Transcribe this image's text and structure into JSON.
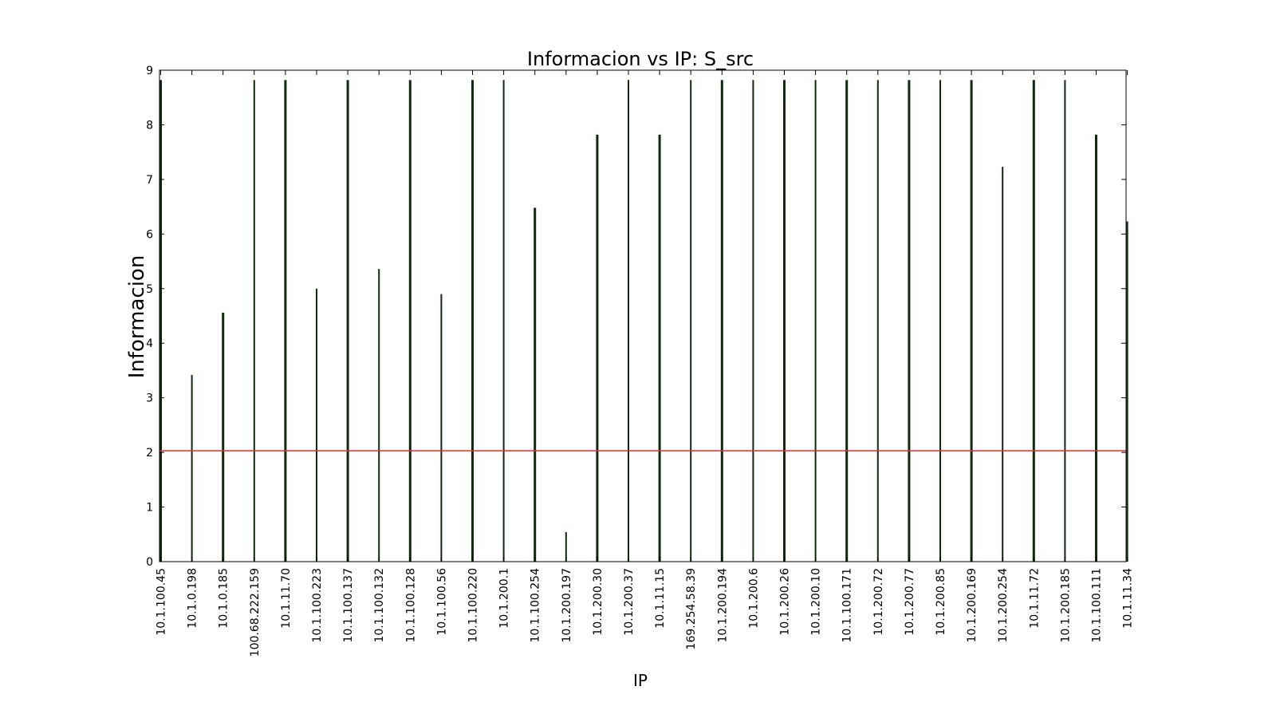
{
  "chart_data": {
    "type": "bar",
    "title": "Informacion vs IP: S_src",
    "xlabel": "IP",
    "ylabel": "Informacion",
    "ylim": [
      0,
      9
    ],
    "yticks": [
      "0",
      "1",
      "2",
      "3",
      "4",
      "5",
      "6",
      "7",
      "8",
      "9"
    ],
    "grid": false,
    "bar_color": "#0f2a0f",
    "threshold": {
      "value": 2.03,
      "color": "#e03030"
    },
    "categories": [
      "10.1.100.45",
      "10.1.0.198",
      "10.1.0.185",
      "100.68.222.159",
      "10.1.11.70",
      "10.1.100.223",
      "10.1.100.137",
      "10.1.100.132",
      "10.1.100.128",
      "10.1.100.56",
      "10.1.100.220",
      "10.1.200.1",
      "10.1.100.254",
      "10.1.200.197",
      "10.1.200.30",
      "10.1.200.37",
      "10.1.11.15",
      "169.254.58.39",
      "10.1.200.194",
      "10.1.200.6",
      "10.1.200.26",
      "10.1.200.10",
      "10.1.100.171",
      "10.1.200.72",
      "10.1.200.77",
      "10.1.200.85",
      "10.1.200.169",
      "10.1.200.254",
      "10.1.11.72",
      "10.1.200.185",
      "10.1.100.111",
      "10.1.11.34"
    ],
    "values": [
      8.82,
      3.42,
      4.56,
      8.82,
      8.82,
      5.0,
      8.82,
      5.36,
      8.82,
      4.9,
      8.82,
      8.82,
      6.48,
      0.54,
      7.82,
      8.82,
      7.82,
      8.82,
      8.82,
      8.82,
      8.82,
      8.82,
      8.82,
      8.82,
      8.82,
      8.82,
      8.82,
      7.23,
      8.82,
      8.82,
      7.82,
      6.23
    ]
  }
}
